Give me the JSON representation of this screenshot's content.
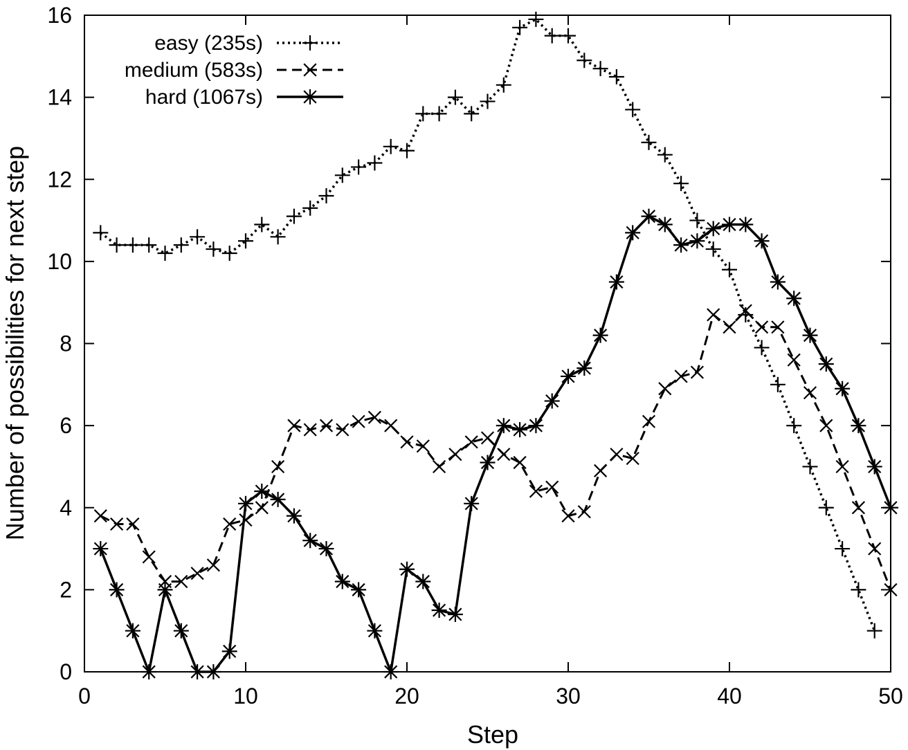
{
  "chart_data": {
    "type": "line",
    "title": "",
    "xlabel": "Step",
    "ylabel": "Number of possibilities for next step",
    "xlim": [
      0,
      50
    ],
    "ylim": [
      0,
      16
    ],
    "xticks": [
      0,
      10,
      20,
      30,
      40,
      50
    ],
    "yticks": [
      0,
      2,
      4,
      6,
      8,
      10,
      12,
      14,
      16
    ],
    "grid": false,
    "legend_position": "top-left",
    "series": [
      {
        "name": "easy (235s)",
        "line_style": "dotted",
        "marker": "plus",
        "color": "#000000",
        "x": [
          1,
          2,
          3,
          4,
          5,
          6,
          7,
          8,
          9,
          10,
          11,
          12,
          13,
          14,
          15,
          16,
          17,
          18,
          19,
          20,
          21,
          22,
          23,
          24,
          25,
          26,
          27,
          28,
          29,
          30,
          31,
          32,
          33,
          34,
          35,
          36,
          37,
          38,
          39,
          40,
          41,
          42,
          43,
          44,
          45,
          46,
          47,
          48,
          49
        ],
        "y": [
          10.7,
          10.4,
          10.4,
          10.4,
          10.2,
          10.4,
          10.6,
          10.3,
          10.2,
          10.5,
          10.9,
          10.6,
          11.1,
          11.3,
          11.6,
          12.1,
          12.3,
          12.4,
          12.8,
          12.7,
          13.6,
          13.6,
          14.0,
          13.6,
          13.9,
          14.3,
          15.7,
          15.9,
          15.5,
          15.5,
          14.9,
          14.7,
          14.5,
          13.7,
          12.9,
          12.6,
          11.9,
          11.0,
          10.3,
          9.8,
          8.7,
          7.9,
          7.0,
          6.0,
          5.0,
          4.0,
          3.0,
          2.0,
          1.0
        ]
      },
      {
        "name": "medium (583s)",
        "line_style": "dashed",
        "marker": "cross",
        "color": "#000000",
        "x": [
          1,
          2,
          3,
          4,
          5,
          6,
          7,
          8,
          9,
          10,
          11,
          12,
          13,
          14,
          15,
          16,
          17,
          18,
          19,
          20,
          21,
          22,
          23,
          24,
          25,
          26,
          27,
          28,
          29,
          30,
          31,
          32,
          33,
          34,
          35,
          36,
          37,
          38,
          39,
          40,
          41,
          42,
          43,
          44,
          45,
          46,
          47,
          48,
          49,
          50
        ],
        "y": [
          3.8,
          3.6,
          3.6,
          2.8,
          2.2,
          2.2,
          2.4,
          2.6,
          3.6,
          3.7,
          4.0,
          5.0,
          6.0,
          5.9,
          6.0,
          5.9,
          6.1,
          6.2,
          6.0,
          5.6,
          5.5,
          5.0,
          5.3,
          5.6,
          5.7,
          5.3,
          5.1,
          4.4,
          4.5,
          3.8,
          3.9,
          4.9,
          5.3,
          5.2,
          6.1,
          6.9,
          7.2,
          7.3,
          8.7,
          8.4,
          8.8,
          8.4,
          8.4,
          7.6,
          6.8,
          6.0,
          5.0,
          4.0,
          3.0,
          2.0
        ]
      },
      {
        "name": "hard (1067s)",
        "line_style": "solid",
        "marker": "star",
        "color": "#000000",
        "x": [
          1,
          2,
          3,
          4,
          5,
          6,
          7,
          8,
          9,
          10,
          11,
          12,
          13,
          14,
          15,
          16,
          17,
          18,
          19,
          20,
          21,
          22,
          23,
          24,
          25,
          26,
          27,
          28,
          29,
          30,
          31,
          32,
          33,
          34,
          35,
          36,
          37,
          38,
          39,
          40,
          41,
          42,
          43,
          44,
          45,
          46,
          47,
          48,
          49,
          50
        ],
        "y": [
          3.0,
          2.0,
          1.0,
          0.0,
          2.0,
          1.0,
          0.0,
          0.0,
          0.5,
          4.1,
          4.4,
          4.2,
          3.8,
          3.2,
          3.0,
          2.2,
          2.0,
          1.0,
          0.0,
          2.5,
          2.2,
          1.5,
          1.4,
          4.1,
          5.1,
          6.0,
          5.9,
          6.0,
          6.6,
          7.2,
          7.4,
          8.2,
          9.5,
          10.7,
          11.1,
          10.9,
          10.4,
          10.5,
          10.8,
          10.9,
          10.9,
          10.5,
          9.5,
          9.1,
          8.2,
          7.5,
          6.9,
          6.0,
          5.0,
          4.0
        ]
      }
    ]
  }
}
